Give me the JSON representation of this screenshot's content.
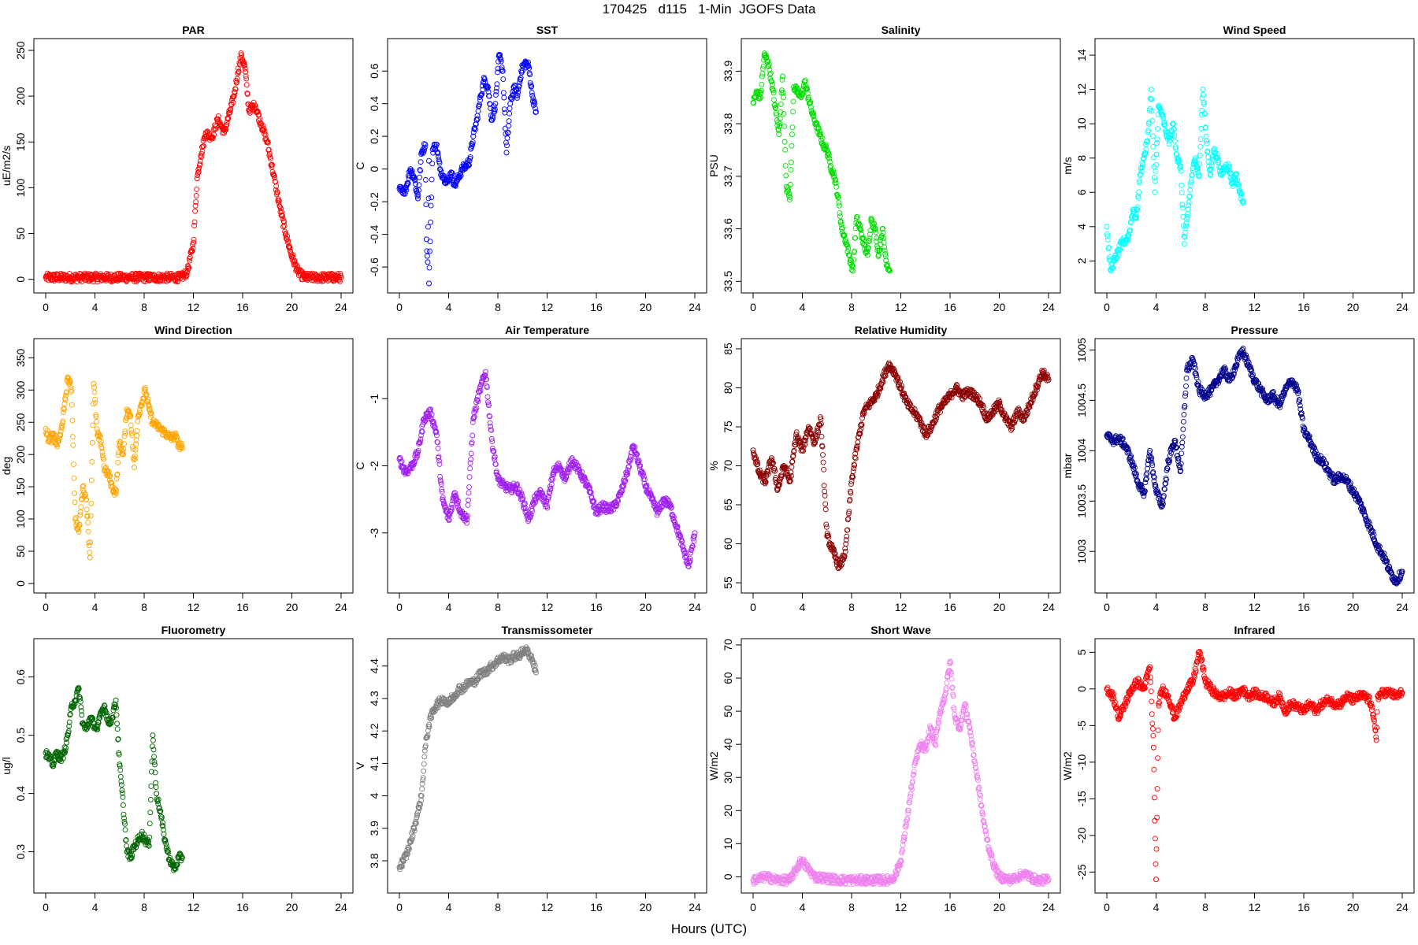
{
  "figure": {
    "title": "170425   d115   1-Min  JGOFS Data",
    "xlabel": "Hours (UTC)"
  },
  "chart_data": [
    {
      "type": "scatter",
      "title": "PAR",
      "ylabel": "uE/m2/s",
      "color": "#ff0000",
      "xlim": [
        0,
        24
      ],
      "xticks": [
        0,
        4,
        8,
        12,
        16,
        20,
        24
      ],
      "ylim": [
        -8,
        256
      ],
      "yticks": [
        0,
        50,
        100,
        150,
        200,
        250
      ],
      "x": [
        0,
        2,
        4,
        6,
        8,
        10,
        11,
        11.5,
        12,
        12.3,
        12.6,
        13,
        13.5,
        14,
        14.5,
        15,
        15.3,
        15.6,
        15.9,
        16.2,
        16.5,
        17,
        17.5,
        18,
        18.5,
        19,
        19.5,
        20,
        20.5,
        21,
        22,
        23,
        24
      ],
      "y": [
        2,
        2,
        2,
        2,
        2,
        2,
        2,
        8,
        40,
        110,
        135,
        160,
        155,
        175,
        160,
        185,
        200,
        225,
        245,
        230,
        185,
        190,
        170,
        150,
        115,
        80,
        50,
        25,
        8,
        2,
        2,
        2,
        2
      ]
    },
    {
      "type": "scatter",
      "title": "SST",
      "ylabel": "C",
      "color": "#0000ff",
      "xlim": [
        0,
        24
      ],
      "xticks": [
        0,
        4,
        8,
        12,
        16,
        20,
        24
      ],
      "ylim": [
        -0.72,
        0.76
      ],
      "yticks": [
        -0.6,
        -0.4,
        -0.2,
        0.0,
        0.2,
        0.4,
        0.6
      ],
      "x": [
        0,
        0.3,
        0.6,
        0.9,
        1.2,
        1.5,
        1.8,
        2.1,
        2.4,
        2.7,
        3,
        3.3,
        3.6,
        3.9,
        4.2,
        4.5,
        4.8,
        5.1,
        5.4,
        5.7,
        6,
        6.3,
        6.6,
        6.9,
        7.2,
        7.5,
        7.8,
        8.1,
        8.4,
        8.7,
        9,
        9.3,
        9.6,
        9.9,
        10.2,
        10.5,
        10.8,
        11.1,
        2.2,
        2.3,
        2.4
      ],
      "y": [
        -0.12,
        -0.15,
        -0.1,
        0,
        -0.05,
        -0.18,
        0.1,
        0.15,
        0.05,
        0.12,
        0.15,
        0,
        -0.05,
        -0.08,
        -0.02,
        -0.1,
        -0.05,
        0,
        0.02,
        0.05,
        0.2,
        0.3,
        0.45,
        0.55,
        0.5,
        0.3,
        0.4,
        0.7,
        0.6,
        0.1,
        0.4,
        0.5,
        0.45,
        0.6,
        0.65,
        0.63,
        0.45,
        0.35,
        -0.43,
        -0.57,
        -0.7
      ]
    },
    {
      "type": "scatter",
      "title": "Salinity",
      "ylabel": "PSU",
      "color": "#00dd00",
      "xlim": [
        0,
        24
      ],
      "xticks": [
        0,
        4,
        8,
        12,
        16,
        20,
        24
      ],
      "ylim": [
        33.49,
        33.95
      ],
      "yticks": [
        33.5,
        33.6,
        33.7,
        33.8,
        33.9
      ],
      "x": [
        0,
        0.3,
        0.6,
        0.9,
        1.2,
        1.5,
        1.8,
        2.1,
        2.4,
        2.7,
        3,
        3.3,
        3.6,
        3.9,
        4.2,
        4.5,
        4.8,
        5.1,
        5.4,
        5.7,
        6,
        6.3,
        6.6,
        6.9,
        7.2,
        7.5,
        7.8,
        8.1,
        8.4,
        8.7,
        9,
        9.3,
        9.6,
        9.9,
        10.2,
        10.5,
        10.8,
        11.1
      ],
      "y": [
        33.84,
        33.86,
        33.85,
        33.93,
        33.92,
        33.88,
        33.83,
        33.78,
        33.89,
        33.68,
        33.66,
        33.87,
        33.86,
        33.85,
        33.88,
        33.85,
        33.82,
        33.8,
        33.78,
        33.76,
        33.75,
        33.72,
        33.7,
        33.66,
        33.6,
        33.58,
        33.55,
        33.52,
        33.62,
        33.6,
        33.57,
        33.55,
        33.62,
        33.6,
        33.55,
        33.6,
        33.54,
        33.52
      ]
    },
    {
      "type": "scatter",
      "title": "Wind Speed",
      "ylabel": "m/s",
      "color": "#00ffff",
      "xlim": [
        0,
        24
      ],
      "xticks": [
        0,
        4,
        8,
        12,
        16,
        20,
        24
      ],
      "ylim": [
        0.5,
        14.6
      ],
      "yticks": [
        2,
        4,
        6,
        8,
        10,
        12,
        14
      ],
      "x": [
        0,
        0.3,
        0.6,
        0.9,
        1.2,
        1.5,
        1.8,
        2.1,
        2.4,
        2.7,
        3,
        3.3,
        3.6,
        3.9,
        4.2,
        4.5,
        4.8,
        5.1,
        5.4,
        5.7,
        6,
        6.3,
        6.6,
        6.9,
        7.2,
        7.5,
        7.8,
        8.1,
        8.4,
        8.7,
        9,
        9.3,
        9.6,
        9.9,
        10.2,
        10.5,
        10.8,
        11.1
      ],
      "y": [
        4,
        1.5,
        2,
        2.5,
        3,
        3.2,
        3.5,
        5,
        4.5,
        7,
        8,
        9,
        12,
        6,
        11,
        10.5,
        9.5,
        9,
        10,
        8,
        7.5,
        3,
        5,
        7,
        8,
        7,
        12,
        9,
        7,
        8.5,
        8,
        7,
        7.5,
        7.5,
        6.5,
        7,
        6,
        5.5
      ]
    },
    {
      "type": "scatter",
      "title": "Wind Direction",
      "ylabel": "deg",
      "color": "#ffa500",
      "xlim": [
        0,
        24
      ],
      "xticks": [
        0,
        4,
        8,
        12,
        16,
        20,
        24
      ],
      "ylim": [
        -5,
        370
      ],
      "yticks": [
        0,
        50,
        100,
        150,
        200,
        250,
        300,
        350
      ],
      "x": [
        0,
        0.3,
        0.6,
        0.9,
        1.2,
        1.5,
        1.8,
        2.1,
        2.4,
        2.7,
        3,
        3.3,
        3.6,
        3.9,
        4.2,
        4.5,
        4.8,
        5.1,
        5.4,
        5.7,
        6,
        6.3,
        6.6,
        6.9,
        7.2,
        7.5,
        7.8,
        8.1,
        8.4,
        8.7,
        9,
        9.3,
        9.6,
        9.9,
        10.2,
        10.5,
        10.8,
        11.1
      ],
      "y": [
        240,
        220,
        230,
        215,
        230,
        270,
        320,
        300,
        100,
        80,
        150,
        130,
        40,
        310,
        230,
        220,
        175,
        170,
        150,
        140,
        220,
        200,
        270,
        260,
        180,
        260,
        280,
        300,
        270,
        250,
        245,
        240,
        235,
        230,
        225,
        230,
        215,
        210
      ]
    },
    {
      "type": "scatter",
      "title": "Air Temperature",
      "ylabel": "C",
      "color": "#a020f0",
      "xlim": [
        0,
        24
      ],
      "xticks": [
        0,
        4,
        8,
        12,
        16,
        20,
        24
      ],
      "ylim": [
        -3.8,
        -0.2
      ],
      "yticks": [
        -3,
        -2,
        -1
      ],
      "x": [
        0,
        0.5,
        1,
        1.5,
        2,
        2.5,
        3,
        3.5,
        4,
        4.5,
        5,
        5.5,
        6,
        6.5,
        7,
        7.5,
        8,
        8.5,
        9,
        9.5,
        10,
        10.5,
        11,
        11.5,
        12,
        12.5,
        13,
        13.5,
        14,
        14.5,
        15,
        15.5,
        16,
        16.5,
        17,
        17.5,
        18,
        18.5,
        19,
        19.5,
        20,
        20.5,
        21,
        21.5,
        22,
        22.5,
        23,
        23.5,
        24
      ],
      "y": [
        -1.9,
        -2.1,
        -2.0,
        -1.8,
        -1.3,
        -1.2,
        -1.5,
        -2.5,
        -2.8,
        -2.4,
        -2.7,
        -2.8,
        -1.3,
        -0.9,
        -0.6,
        -1.6,
        -2.2,
        -2.3,
        -2.35,
        -2.3,
        -2.5,
        -2.8,
        -2.5,
        -2.4,
        -2.6,
        -2.1,
        -2.0,
        -2.2,
        -1.9,
        -2.05,
        -2.2,
        -2.4,
        -2.7,
        -2.6,
        -2.65,
        -2.6,
        -2.4,
        -2.1,
        -1.7,
        -2.0,
        -2.3,
        -2.5,
        -2.7,
        -2.5,
        -2.6,
        -2.9,
        -3.2,
        -3.5,
        -3.0
      ]
    },
    {
      "type": "scatter",
      "title": "Relative Humidity",
      "ylabel": "%",
      "color": "#8b0000",
      "xlim": [
        0,
        24
      ],
      "xticks": [
        0,
        4,
        8,
        12,
        16,
        20,
        24
      ],
      "ylim": [
        54.5,
        85.5
      ],
      "yticks": [
        55,
        60,
        65,
        70,
        75,
        80,
        85
      ],
      "x": [
        0,
        0.5,
        1,
        1.5,
        2,
        2.5,
        3,
        3.5,
        4,
        4.5,
        5,
        5.5,
        6,
        6.5,
        7,
        7.5,
        8,
        8.5,
        9,
        9.5,
        10,
        10.5,
        11,
        11.5,
        12,
        12.5,
        13,
        13.5,
        14,
        14.5,
        15,
        15.5,
        16,
        16.5,
        17,
        17.5,
        18,
        18.5,
        19,
        19.5,
        20,
        20.5,
        21,
        21.5,
        22,
        22.5,
        23,
        23.5,
        24
      ],
      "y": [
        72,
        69,
        68,
        71,
        67,
        70,
        68,
        74,
        72,
        75,
        73,
        76,
        61,
        59,
        57,
        59,
        68,
        73,
        77,
        78,
        79,
        81,
        83,
        82,
        80,
        78,
        77,
        76,
        74,
        75,
        77,
        78,
        79,
        80,
        79,
        79.5,
        79,
        78,
        76,
        77,
        78,
        76,
        75,
        77,
        76,
        78,
        80,
        82,
        81
      ]
    },
    {
      "type": "scatter",
      "title": "Pressure",
      "ylabel": "mbar",
      "color": "#00008b",
      "xlim": [
        0,
        24
      ],
      "xticks": [
        0,
        4,
        8,
        12,
        16,
        20,
        24
      ],
      "ylim": [
        1002.65,
        1005.05
      ],
      "yticks": [
        1003.0,
        1003.5,
        1004.0,
        1004.5,
        1005.0
      ],
      "x": [
        0,
        0.5,
        1,
        1.5,
        2,
        2.5,
        3,
        3.5,
        4,
        4.5,
        5,
        5.5,
        6,
        6.5,
        7,
        7.5,
        8,
        8.5,
        9,
        9.5,
        10,
        10.5,
        11,
        11.5,
        12,
        12.5,
        13,
        13.5,
        14,
        14.5,
        15,
        15.5,
        16,
        16.5,
        17,
        17.5,
        18,
        18.5,
        19,
        19.5,
        20,
        20.5,
        21,
        21.5,
        22,
        22.5,
        23,
        23.5,
        24
      ],
      "y": [
        1004.15,
        1004.1,
        1004.12,
        1004.05,
        1003.9,
        1003.7,
        1003.55,
        1004.0,
        1003.6,
        1003.45,
        1003.9,
        1004.1,
        1003.8,
        1004.8,
        1004.9,
        1004.6,
        1004.55,
        1004.6,
        1004.7,
        1004.8,
        1004.7,
        1004.85,
        1005.0,
        1004.85,
        1004.7,
        1004.6,
        1004.5,
        1004.55,
        1004.45,
        1004.6,
        1004.7,
        1004.6,
        1004.2,
        1004.1,
        1003.95,
        1003.9,
        1003.8,
        1003.7,
        1003.75,
        1003.7,
        1003.6,
        1003.5,
        1003.35,
        1003.2,
        1003.05,
        1002.95,
        1002.8,
        1002.7,
        1002.8
      ]
    },
    {
      "type": "scatter",
      "title": "Fluorometry",
      "ylabel": "ug/l",
      "color": "#006400",
      "xlim": [
        0,
        24
      ],
      "xticks": [
        0,
        4,
        8,
        12,
        16,
        20,
        24
      ],
      "ylim": [
        0.24,
        0.655
      ],
      "yticks": [
        0.3,
        0.4,
        0.5,
        0.6
      ],
      "x": [
        0,
        0.3,
        0.6,
        0.9,
        1.2,
        1.5,
        1.8,
        2.1,
        2.4,
        2.7,
        3,
        3.3,
        3.6,
        3.9,
        4.2,
        4.5,
        4.8,
        5.1,
        5.4,
        5.7,
        6,
        6.3,
        6.6,
        6.9,
        7.2,
        7.5,
        7.8,
        8.1,
        8.4,
        8.7,
        9,
        9.3,
        9.6,
        9.9,
        10.2,
        10.5,
        10.8,
        11.1
      ],
      "y": [
        0.47,
        0.46,
        0.45,
        0.47,
        0.46,
        0.47,
        0.5,
        0.55,
        0.56,
        0.58,
        0.52,
        0.51,
        0.53,
        0.52,
        0.51,
        0.54,
        0.55,
        0.52,
        0.53,
        0.56,
        0.45,
        0.38,
        0.3,
        0.29,
        0.31,
        0.32,
        0.33,
        0.32,
        0.31,
        0.5,
        0.4,
        0.37,
        0.33,
        0.3,
        0.28,
        0.27,
        0.29,
        0.29
      ]
    },
    {
      "type": "scatter",
      "title": "Transmissometer",
      "ylabel": "V",
      "color": "#808080",
      "xlim": [
        0,
        24
      ],
      "xticks": [
        0,
        4,
        8,
        12,
        16,
        20,
        24
      ],
      "ylim": [
        3.72,
        4.465
      ],
      "yticks": [
        3.8,
        3.9,
        4.0,
        4.1,
        4.2,
        4.3,
        4.4
      ],
      "x": [
        0,
        0.3,
        0.6,
        0.9,
        1.2,
        1.5,
        1.8,
        2.1,
        2.4,
        2.7,
        3,
        3.3,
        3.6,
        3.9,
        4.2,
        4.5,
        4.8,
        5.1,
        5.4,
        5.7,
        6,
        6.3,
        6.6,
        6.9,
        7.2,
        7.5,
        7.8,
        8.1,
        8.4,
        8.7,
        9,
        9.3,
        9.6,
        9.9,
        10.2,
        10.5,
        10.8,
        11.1
      ],
      "y": [
        3.78,
        3.8,
        3.82,
        3.86,
        3.9,
        3.95,
        4.0,
        4.15,
        4.22,
        4.26,
        4.28,
        4.29,
        4.3,
        4.28,
        4.3,
        4.31,
        4.33,
        4.33,
        4.34,
        4.35,
        4.35,
        4.36,
        4.38,
        4.38,
        4.39,
        4.4,
        4.41,
        4.42,
        4.43,
        4.42,
        4.42,
        4.43,
        4.43,
        4.44,
        4.45,
        4.44,
        4.42,
        4.38
      ]
    },
    {
      "type": "scatter",
      "title": "Short Wave",
      "ylabel": "W/m2",
      "color": "#ee82ee",
      "xlim": [
        0,
        24
      ],
      "xticks": [
        0,
        4,
        8,
        12,
        16,
        20,
        24
      ],
      "ylim": [
        -3,
        70
      ],
      "yticks": [
        0,
        10,
        20,
        30,
        40,
        50,
        60,
        70
      ],
      "x": [
        0,
        1,
        2,
        3,
        3.9,
        5,
        6,
        7,
        8,
        9,
        10,
        11,
        11.5,
        12,
        12.4,
        12.8,
        13.2,
        13.6,
        14,
        14.4,
        14.8,
        15.2,
        15.6,
        16,
        16.4,
        16.8,
        17.2,
        17.6,
        18,
        18.4,
        18.8,
        19.2,
        19.6,
        20,
        21,
        22,
        23,
        24
      ],
      "y": [
        -1,
        0,
        -1,
        -1,
        5,
        0,
        -0.5,
        -1,
        -1,
        -1,
        -1,
        -1,
        0,
        5,
        15,
        25,
        35,
        40,
        38,
        45,
        40,
        50,
        55,
        65,
        48,
        45,
        52,
        45,
        35,
        25,
        15,
        8,
        3,
        0,
        -1,
        1,
        -1,
        -1
      ]
    },
    {
      "type": "scatter",
      "title": "Infrared",
      "ylabel": "W/m2",
      "color": "#ff0000",
      "xlim": [
        0,
        24
      ],
      "xticks": [
        0,
        4,
        8,
        12,
        16,
        20,
        24
      ],
      "ylim": [
        -27,
        6
      ],
      "yticks": [
        -25,
        -20,
        -15,
        -10,
        -5,
        0,
        5
      ],
      "x": [
        0,
        0.5,
        1,
        1.5,
        2,
        2.5,
        3,
        3.5,
        3.8,
        3.9,
        4,
        4.2,
        4.5,
        5,
        5.5,
        6,
        6.5,
        7,
        7.5,
        7.8,
        8,
        8.5,
        9,
        9.5,
        10,
        10.5,
        11,
        11.5,
        12,
        12.5,
        13,
        13.5,
        14,
        14.5,
        15,
        15.5,
        16,
        16.5,
        17,
        17.5,
        18,
        18.5,
        19,
        19.5,
        20,
        20.5,
        21,
        21.5,
        21.9,
        22,
        22.5,
        23,
        23.5,
        24
      ],
      "y": [
        0,
        -1,
        -4,
        -2,
        0,
        1,
        0,
        3,
        -8,
        -18,
        -26,
        -2,
        0,
        -1,
        -4,
        -2,
        0,
        1,
        5,
        3,
        1,
        0,
        -1,
        -1,
        -0.5,
        -1,
        0,
        -1,
        -0.5,
        -1,
        -1,
        -2,
        -1,
        -3,
        -2,
        -2.5,
        -3,
        -2,
        -3,
        -2,
        -1.5,
        -2,
        -2,
        -1,
        -1.5,
        -1,
        -1,
        -2,
        -7,
        -1,
        -0.5,
        -0.5,
        -1,
        -0.5
      ]
    }
  ]
}
